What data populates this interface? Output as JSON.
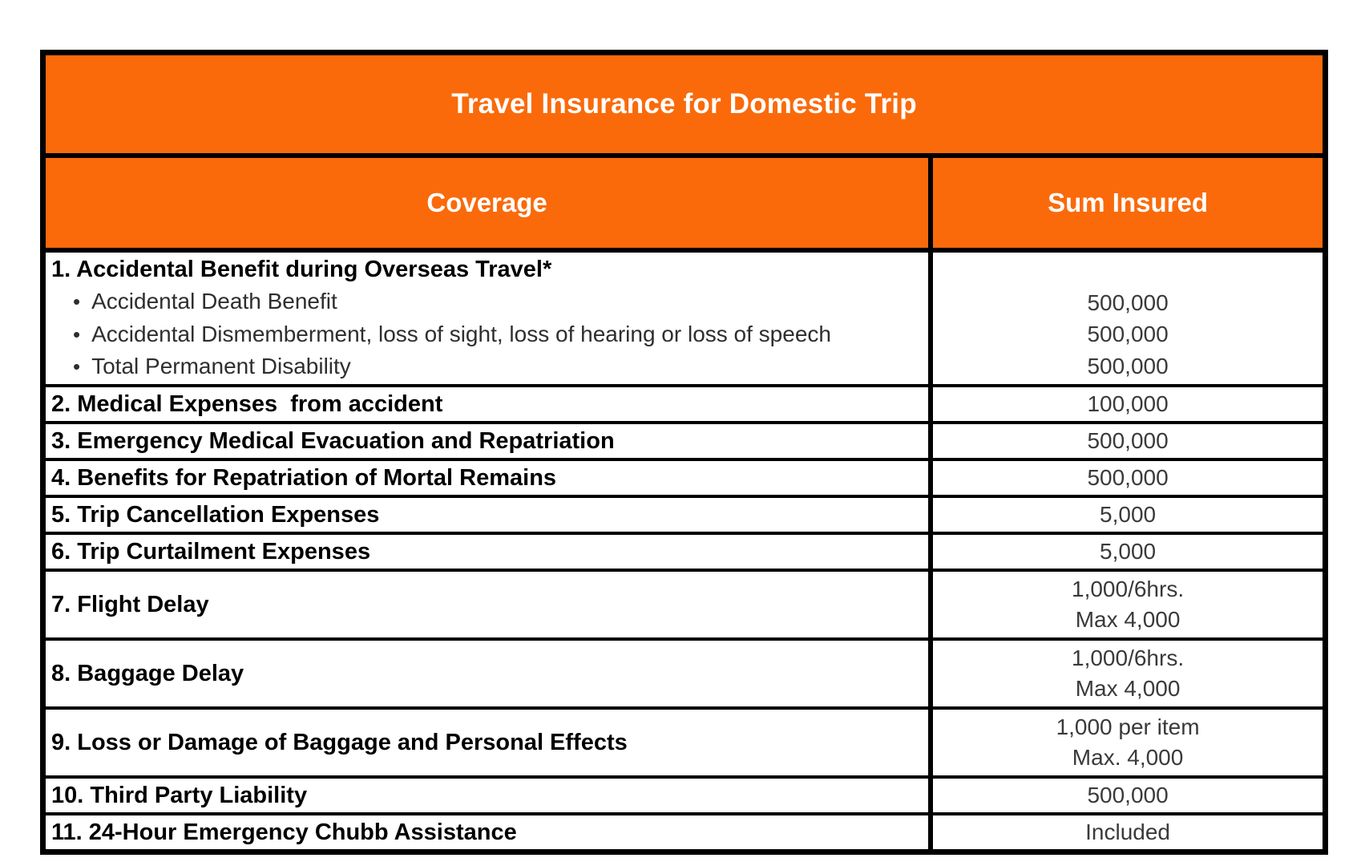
{
  "title": "Travel Insurance for Domestic Trip",
  "columns": {
    "coverage": "Coverage",
    "sum_insured": "Sum Insured"
  },
  "icons": {
    "bullet": "•"
  },
  "colors": {
    "brand_orange": "#FA6A0A",
    "border_black": "#000000",
    "header_text": "#FFFFFF",
    "body_text": "#000000"
  },
  "rows": [
    {
      "label": "1. Accidental Benefit during Overseas Travel*",
      "sub_items": [
        {
          "label": "Accidental Death Benefit",
          "value": "500,000"
        },
        {
          "label": "Accidental Dismemberment, loss of sight, loss of hearing or loss of speech",
          "value": "500,000"
        },
        {
          "label": "Total Permanent Disability",
          "value": "500,000"
        }
      ]
    },
    {
      "label": "2. Medical Expenses  from accident",
      "values": [
        "100,000"
      ]
    },
    {
      "label": "3. Emergency Medical Evacuation and Repatriation",
      "values": [
        "500,000"
      ]
    },
    {
      "label": "4. Benefits for Repatriation of Mortal Remains",
      "values": [
        "500,000"
      ]
    },
    {
      "label": "5. Trip Cancellation Expenses",
      "values": [
        "5,000"
      ]
    },
    {
      "label": "6. Trip Curtailment Expenses",
      "values": [
        "5,000"
      ]
    },
    {
      "label": "7. Flight Delay",
      "values": [
        "1,000/6hrs.",
        "Max 4,000"
      ]
    },
    {
      "label": "8. Baggage Delay",
      "values": [
        "1,000/6hrs.",
        "Max 4,000"
      ]
    },
    {
      "label": "9. Loss or Damage of Baggage and Personal Effects",
      "values": [
        "1,000 per item",
        "Max. 4,000"
      ]
    },
    {
      "label": "10. Third Party Liability",
      "values": [
        "500,000"
      ]
    },
    {
      "label": "11. 24-Hour Emergency Chubb Assistance",
      "values": [
        "Included"
      ]
    }
  ]
}
